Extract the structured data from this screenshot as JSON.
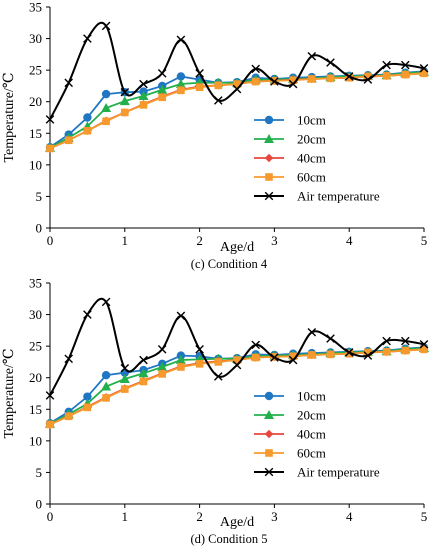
{
  "chart_data": [
    {
      "type": "line",
      "caption": "(c) Condition 4",
      "xlabel": "Age/d",
      "ylabel": "Temperature/℃",
      "xlim": [
        0,
        5
      ],
      "ylim": [
        0,
        35
      ],
      "xticks": [
        0,
        1,
        2,
        3,
        4,
        5
      ],
      "yticks": [
        0,
        5,
        10,
        15,
        20,
        25,
        30,
        35
      ],
      "grid": false,
      "legend_position": "lower-right",
      "series": [
        {
          "name": "10cm",
          "color": "#1f77c4",
          "marker": "circle",
          "x": [
            0,
            0.25,
            0.5,
            0.75,
            1,
            1.25,
            1.5,
            1.75,
            2,
            2.25,
            2.5,
            2.75,
            3,
            3.25,
            3.5,
            3.75,
            4,
            4.25,
            4.5,
            4.75,
            5
          ],
          "y": [
            12.8,
            14.8,
            17.5,
            21.2,
            21.5,
            21.6,
            22.5,
            24.0,
            23.5,
            23.0,
            23.1,
            23.8,
            23.6,
            23.8,
            23.9,
            24.0,
            24.1,
            24.2,
            24.3,
            24.6,
            24.8
          ]
        },
        {
          "name": "20cm",
          "color": "#22b04b",
          "marker": "triangle",
          "x": [
            0,
            0.25,
            0.5,
            0.75,
            1,
            1.25,
            1.5,
            1.75,
            2,
            2.25,
            2.5,
            2.75,
            3,
            3.25,
            3.5,
            3.75,
            4,
            4.25,
            4.5,
            4.75,
            5
          ],
          "y": [
            12.7,
            14.3,
            16.1,
            19.0,
            20.1,
            20.9,
            21.9,
            22.8,
            23.0,
            23.0,
            23.0,
            23.5,
            23.5,
            23.6,
            23.7,
            23.9,
            24.0,
            24.1,
            24.2,
            24.5,
            24.7
          ]
        },
        {
          "name": "40cm",
          "color": "#e8463a",
          "marker": "diamond",
          "x": [
            0,
            0.25,
            0.5,
            0.75,
            1,
            1.25,
            1.5,
            1.75,
            2,
            2.25,
            2.5,
            2.75,
            3,
            3.25,
            3.5,
            3.75,
            4,
            4.25,
            4.5,
            4.75,
            5
          ],
          "y": [
            12.6,
            13.9,
            15.4,
            17.0,
            18.3,
            19.6,
            20.8,
            21.9,
            22.4,
            22.6,
            22.8,
            23.2,
            23.3,
            23.5,
            23.6,
            23.7,
            23.8,
            24.0,
            24.1,
            24.3,
            24.5
          ]
        },
        {
          "name": "60cm",
          "color": "#f79a2e",
          "marker": "square",
          "x": [
            0,
            0.25,
            0.5,
            0.75,
            1,
            1.25,
            1.5,
            1.75,
            2,
            2.25,
            2.5,
            2.75,
            3,
            3.25,
            3.5,
            3.75,
            4,
            4.25,
            4.5,
            4.75,
            5
          ],
          "y": [
            12.6,
            13.9,
            15.4,
            16.9,
            18.3,
            19.5,
            20.7,
            21.8,
            22.3,
            22.6,
            22.8,
            23.2,
            23.3,
            23.4,
            23.6,
            23.7,
            23.8,
            24.0,
            24.1,
            24.3,
            24.5
          ]
        },
        {
          "name": "Air temperature",
          "color": "#000000",
          "marker": "x",
          "x": [
            0,
            0.25,
            0.5,
            0.75,
            1,
            1.25,
            1.5,
            1.75,
            2,
            2.25,
            2.5,
            2.75,
            3,
            3.25,
            3.5,
            3.75,
            4,
            4.25,
            4.5,
            4.75,
            5
          ],
          "y": [
            17.2,
            23.0,
            30.0,
            32.0,
            21.5,
            22.8,
            24.5,
            29.8,
            24.5,
            20.2,
            22.0,
            25.2,
            23.2,
            22.8,
            27.2,
            26.2,
            24.0,
            23.5,
            25.8,
            25.8,
            25.3
          ]
        }
      ]
    },
    {
      "type": "line",
      "caption": "(d) Condition 5",
      "xlabel": "Age/d",
      "ylabel": "Temperature/℃",
      "xlim": [
        0,
        5
      ],
      "ylim": [
        0,
        35
      ],
      "xticks": [
        0,
        1,
        2,
        3,
        4,
        5
      ],
      "yticks": [
        0,
        5,
        10,
        15,
        20,
        25,
        30,
        35
      ],
      "grid": false,
      "legend_position": "lower-right",
      "series": [
        {
          "name": "10cm",
          "color": "#1f77c4",
          "marker": "circle",
          "x": [
            0,
            0.25,
            0.5,
            0.75,
            1,
            1.25,
            1.5,
            1.75,
            2,
            2.25,
            2.5,
            2.75,
            3,
            3.25,
            3.5,
            3.75,
            4,
            4.25,
            4.5,
            4.75,
            5
          ],
          "y": [
            12.8,
            14.6,
            17.0,
            20.4,
            20.8,
            21.2,
            22.2,
            23.5,
            23.4,
            23.0,
            23.1,
            23.7,
            23.6,
            23.8,
            23.9,
            24.0,
            24.1,
            24.2,
            24.3,
            24.6,
            24.8
          ]
        },
        {
          "name": "20cm",
          "color": "#22b04b",
          "marker": "triangle",
          "x": [
            0,
            0.25,
            0.5,
            0.75,
            1,
            1.25,
            1.5,
            1.75,
            2,
            2.25,
            2.5,
            2.75,
            3,
            3.25,
            3.5,
            3.75,
            4,
            4.25,
            4.5,
            4.75,
            5
          ],
          "y": [
            12.7,
            14.2,
            15.9,
            18.6,
            19.8,
            20.7,
            21.7,
            22.8,
            22.9,
            23.0,
            23.0,
            23.4,
            23.5,
            23.6,
            23.7,
            23.9,
            24.0,
            24.1,
            24.2,
            24.5,
            24.7
          ]
        },
        {
          "name": "40cm",
          "color": "#e8463a",
          "marker": "diamond",
          "x": [
            0,
            0.25,
            0.5,
            0.75,
            1,
            1.25,
            1.5,
            1.75,
            2,
            2.25,
            2.5,
            2.75,
            3,
            3.25,
            3.5,
            3.75,
            4,
            4.25,
            4.5,
            4.75,
            5
          ],
          "y": [
            12.6,
            13.9,
            15.4,
            16.9,
            18.3,
            19.5,
            20.7,
            21.8,
            22.3,
            22.6,
            22.8,
            23.2,
            23.3,
            23.4,
            23.6,
            23.7,
            23.8,
            24.0,
            24.1,
            24.3,
            24.5
          ]
        },
        {
          "name": "60cm",
          "color": "#f79a2e",
          "marker": "square",
          "x": [
            0,
            0.25,
            0.5,
            0.75,
            1,
            1.25,
            1.5,
            1.75,
            2,
            2.25,
            2.5,
            2.75,
            3,
            3.25,
            3.5,
            3.75,
            4,
            4.25,
            4.5,
            4.75,
            5
          ],
          "y": [
            12.6,
            13.9,
            15.3,
            16.8,
            18.2,
            19.4,
            20.6,
            21.7,
            22.2,
            22.5,
            22.8,
            23.2,
            23.3,
            23.4,
            23.6,
            23.7,
            23.8,
            24.0,
            24.1,
            24.3,
            24.5
          ]
        },
        {
          "name": "Air temperature",
          "color": "#000000",
          "marker": "x",
          "x": [
            0,
            0.25,
            0.5,
            0.75,
            1,
            1.25,
            1.5,
            1.75,
            2,
            2.25,
            2.5,
            2.75,
            3,
            3.25,
            3.5,
            3.75,
            4,
            4.25,
            4.5,
            4.75,
            5
          ],
          "y": [
            17.2,
            23.0,
            30.0,
            32.0,
            21.5,
            22.8,
            24.5,
            29.8,
            24.5,
            20.2,
            22.0,
            25.2,
            23.2,
            22.8,
            27.2,
            26.2,
            24.0,
            23.5,
            25.8,
            25.8,
            25.3
          ]
        }
      ]
    }
  ]
}
